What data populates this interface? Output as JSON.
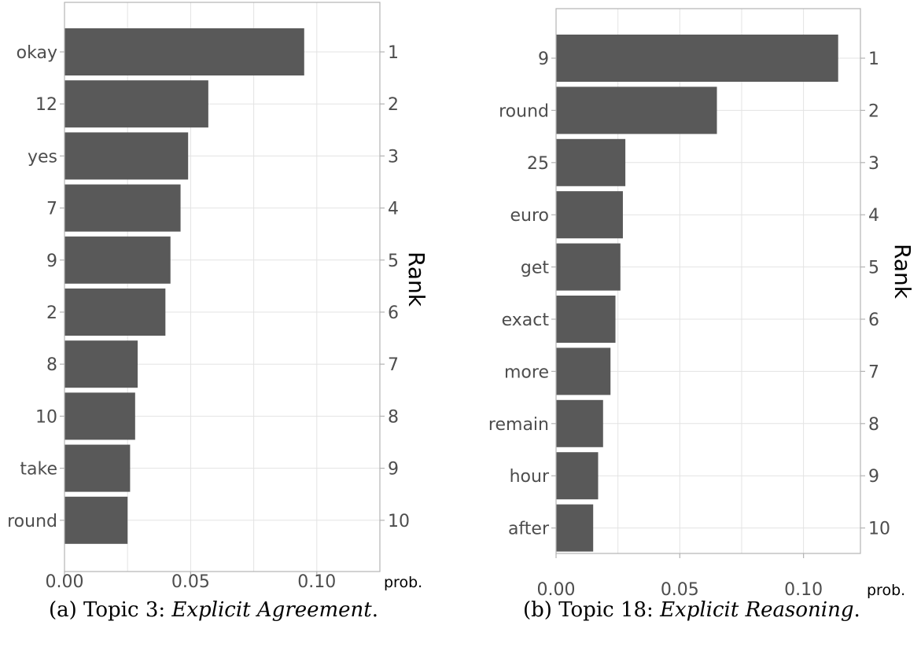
{
  "chart_data": [
    {
      "type": "bar",
      "orientation": "horizontal",
      "categories": [
        "okay",
        "12",
        "yes",
        "7",
        "9",
        "2",
        "8",
        "10",
        "take",
        "round"
      ],
      "values": [
        0.095,
        0.057,
        0.049,
        0.046,
        0.042,
        0.04,
        0.029,
        0.028,
        0.026,
        0.025
      ],
      "ranks": [
        "1",
        "2",
        "3",
        "4",
        "5",
        "6",
        "7",
        "8",
        "9",
        "10"
      ],
      "xticks": [
        "0.00",
        "0.05",
        "0.10"
      ],
      "xtick_values": [
        0,
        0.05,
        0.1
      ],
      "xlim": [
        0,
        0.125
      ],
      "xlabel": "prob.",
      "secondary_ylabel": "Rank",
      "caption_prefix": "(a) Topic 3: ",
      "caption_title": "Explicit Agreement",
      "caption_suffix": ".",
      "grid": true,
      "bar_color": "#595959"
    },
    {
      "type": "bar",
      "orientation": "horizontal",
      "categories": [
        "9",
        "round",
        "25",
        "euro",
        "get",
        "exact",
        "more",
        "remain",
        "hour",
        "after"
      ],
      "values": [
        0.114,
        0.065,
        0.028,
        0.027,
        0.026,
        0.024,
        0.022,
        0.019,
        0.017,
        0.015
      ],
      "ranks": [
        "1",
        "2",
        "3",
        "4",
        "5",
        "6",
        "7",
        "8",
        "9",
        "10"
      ],
      "xticks": [
        "0.00",
        "0.05",
        "0.10"
      ],
      "xtick_values": [
        0,
        0.05,
        0.1
      ],
      "xlim": [
        0,
        0.123
      ],
      "xlabel": "prob.",
      "secondary_ylabel": "Rank",
      "caption_prefix": "(b) Topic 18: ",
      "caption_title": "Explicit Reasoning",
      "caption_suffix": ".",
      "grid": true,
      "bar_color": "#595959"
    }
  ]
}
